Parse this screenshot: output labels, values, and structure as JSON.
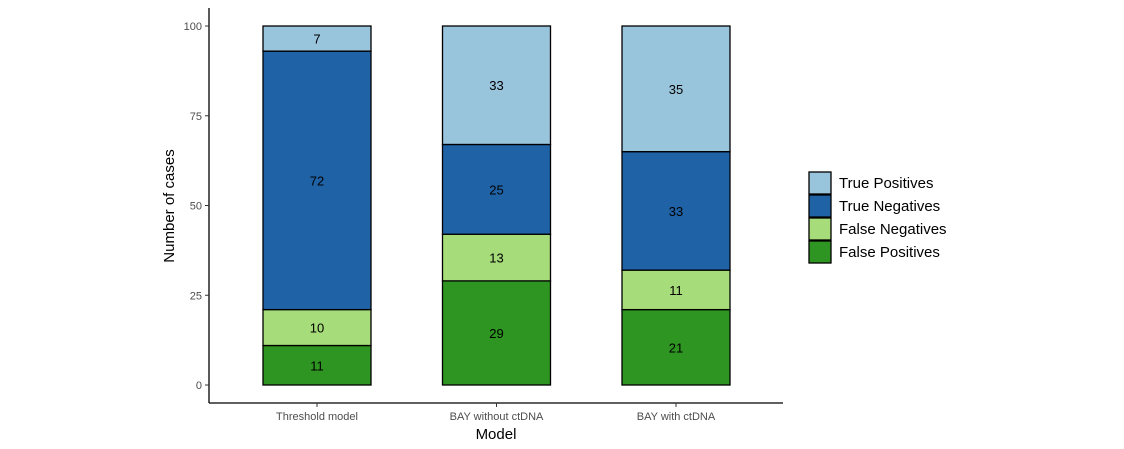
{
  "chart_data": {
    "type": "bar",
    "stacked": true,
    "title": "",
    "xlabel": "Model",
    "ylabel": "Number of cases",
    "ylim": [
      0,
      100
    ],
    "yticks": [
      0,
      25,
      50,
      75,
      100
    ],
    "categories": [
      "Threshold model",
      "BAY without ctDNA",
      "BAY with ctDNA"
    ],
    "series": [
      {
        "name": "False Positives",
        "color": "#2e9422",
        "values": [
          11,
          29,
          21
        ]
      },
      {
        "name": "False Negatives",
        "color": "#a6dc79",
        "values": [
          10,
          13,
          11
        ]
      },
      {
        "name": "True Negatives",
        "color": "#1f62a6",
        "values": [
          72,
          25,
          33
        ]
      },
      {
        "name": "True Positives",
        "color": "#98c4dc",
        "values": [
          7,
          33,
          35
        ]
      }
    ],
    "legend": {
      "position": "right",
      "order": [
        "True Positives",
        "True Negatives",
        "False Negatives",
        "False Positives"
      ]
    },
    "grid": false
  }
}
